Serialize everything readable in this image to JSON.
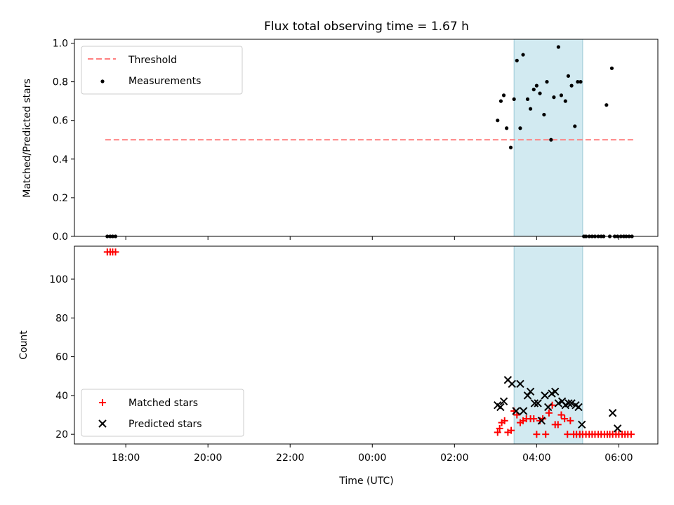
{
  "chart_data": {
    "title": "Flux total observing time = 1.67 h",
    "xlabel": "Time (UTC)",
    "xticks": [
      "18:00",
      "20:00",
      "22:00",
      "00:00",
      "02:00",
      "04:00",
      "06:00"
    ],
    "xtick_hours": [
      18,
      20,
      22,
      24,
      26,
      28,
      30
    ],
    "xlim_hours": [
      16.75,
      30.95
    ],
    "observing_window_hours": [
      27.45,
      29.12
    ],
    "panels": [
      {
        "type": "scatter",
        "ylabel": "Matched/Predicted stars",
        "ylim": [
          0,
          1.02
        ],
        "yticks": [
          "0.0",
          "0.2",
          "0.4",
          "0.6",
          "0.8",
          "1.0"
        ],
        "ytick_values": [
          0,
          0.2,
          0.4,
          0.6,
          0.8,
          1.0
        ],
        "legend": {
          "position": "upper left",
          "threshold_label": "Threshold",
          "measurements_label": "Measurements"
        },
        "threshold": {
          "value": 0.5,
          "x_range_hours": [
            17.5,
            30.35
          ],
          "color": "#ff7f7f",
          "style": "dashed"
        },
        "series": [
          {
            "name": "Measurements",
            "color": "#000000",
            "x_hours": [
              17.55,
              17.62,
              17.68,
              17.75,
              27.05,
              27.13,
              27.2,
              27.27,
              27.37,
              27.45,
              27.52,
              27.6,
              27.67,
              27.78,
              27.85,
              27.93,
              28.0,
              28.08,
              28.18,
              28.25,
              28.35,
              28.42,
              28.53,
              28.6,
              28.7,
              28.77,
              28.85,
              28.93,
              29.0,
              29.07,
              29.15,
              29.2,
              29.28,
              29.35,
              29.42,
              29.5,
              29.57,
              29.63,
              29.7,
              29.78,
              29.83,
              29.9,
              29.97,
              30.05,
              30.12,
              30.18,
              30.25,
              30.32
            ],
            "y": [
              0,
              0,
              0,
              0,
              0.6,
              0.7,
              0.73,
              0.56,
              0.46,
              0.71,
              0.91,
              0.56,
              0.94,
              0.71,
              0.66,
              0.76,
              0.78,
              0.74,
              0.63,
              0.8,
              0.5,
              0.72,
              0.98,
              0.73,
              0.7,
              0.83,
              0.78,
              0.57,
              0.8,
              0.8,
              0,
              0,
              0,
              0,
              0,
              0,
              0,
              0,
              0.68,
              0,
              0.87,
              0,
              0,
              0,
              0,
              0,
              0,
              0
            ]
          }
        ]
      },
      {
        "type": "scatter",
        "ylabel": "Count",
        "ylim": [
          15,
          117
        ],
        "yticks": [
          "20",
          "40",
          "60",
          "80",
          "100"
        ],
        "ytick_values": [
          20,
          40,
          60,
          80,
          100
        ],
        "legend": {
          "position": "lower left"
        },
        "series": [
          {
            "name": "Matched stars",
            "marker": "+",
            "color": "#ff0000",
            "x_hours": [
              17.55,
              17.62,
              17.68,
              17.75,
              27.05,
              27.1,
              27.15,
              27.22,
              27.3,
              27.38,
              27.45,
              27.52,
              27.6,
              27.67,
              27.75,
              27.85,
              27.93,
              28.0,
              28.08,
              28.15,
              28.22,
              28.3,
              28.38,
              28.45,
              28.52,
              28.6,
              28.68,
              28.75,
              28.82,
              28.9,
              28.97,
              29.05,
              29.12,
              29.2,
              29.28,
              29.35,
              29.42,
              29.5,
              29.57,
              29.65,
              29.72,
              29.78,
              29.85,
              29.93,
              30.0,
              30.08,
              30.15,
              30.22,
              30.3
            ],
            "y": [
              114,
              114,
              114,
              114,
              21,
              23,
              26,
              27,
              21,
              22,
              32,
              30,
              26,
              27,
              28,
              28,
              28,
              20,
              27,
              28,
              20,
              31,
              35,
              25,
              25,
              30,
              28,
              20,
              27,
              20,
              20,
              20,
              20,
              20,
              20,
              20,
              20,
              20,
              20,
              20,
              20,
              20,
              20,
              20,
              20,
              20,
              20,
              20,
              20
            ]
          },
          {
            "name": "Predicted stars",
            "marker": "x",
            "color": "#000000",
            "x_hours": [
              27.05,
              27.12,
              27.2,
              27.3,
              27.4,
              27.5,
              27.6,
              27.68,
              27.78,
              27.85,
              27.95,
              28.03,
              28.12,
              28.2,
              28.28,
              28.37,
              28.45,
              28.53,
              28.62,
              28.7,
              28.78,
              28.85,
              28.95,
              29.02,
              29.1,
              29.85,
              29.97
            ],
            "y": [
              35,
              34,
              37,
              48,
              46,
              32,
              46,
              32,
              40,
              42,
              36,
              36,
              27,
              40,
              34,
              41,
              42,
              36,
              37,
              35,
              36,
              36,
              35,
              34,
              25,
              31,
              23
            ]
          }
        ]
      }
    ],
    "span_color": "#add8e6"
  }
}
